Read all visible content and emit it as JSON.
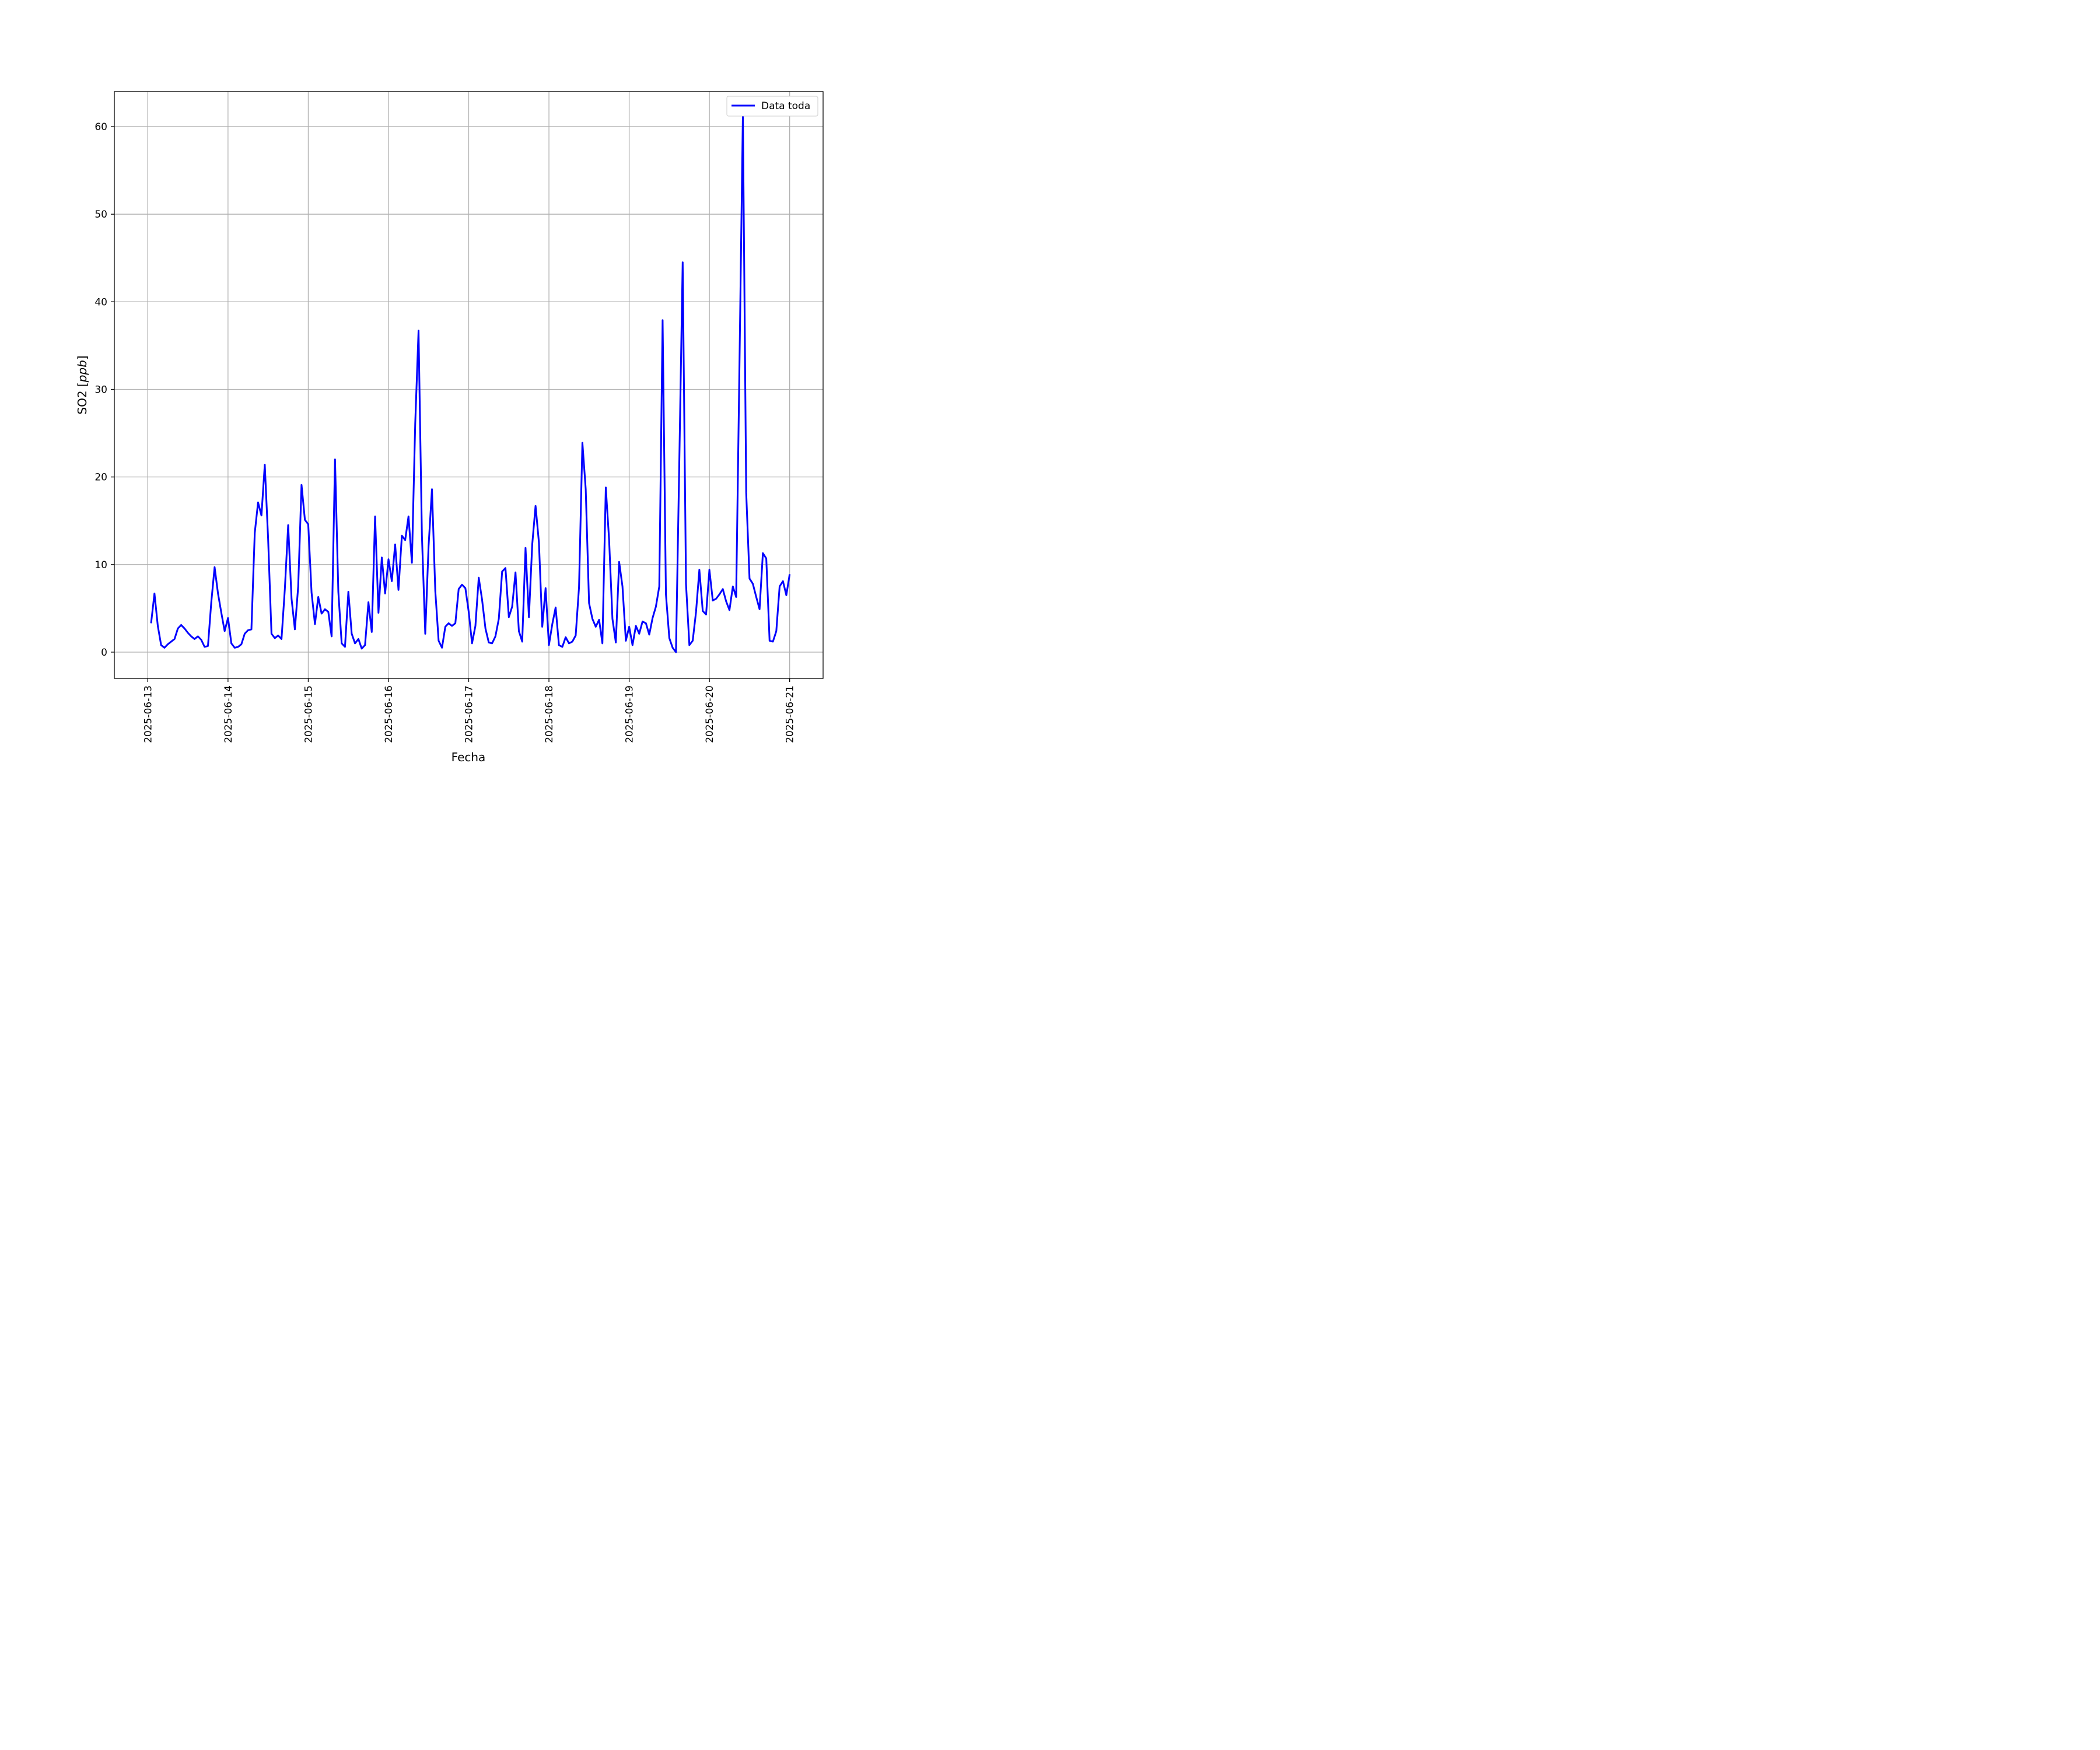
{
  "chart_data": {
    "type": "line",
    "xlabel": "Fecha",
    "ylabel": "SO2 [ppb]",
    "ylabel_main": "SO2 [",
    "ylabel_unit": "ppb",
    "ylabel_close": "]",
    "grid": true,
    "legend_position": "top-right",
    "xlim": [
      "2025-06-12T14:00",
      "2025-06-21T10:00"
    ],
    "ylim": [
      -3,
      64
    ],
    "y_ticks": [
      0,
      10,
      20,
      30,
      40,
      50,
      60
    ],
    "x_ticks": [
      "2025-06-13",
      "2025-06-14",
      "2025-06-15",
      "2025-06-16",
      "2025-06-17",
      "2025-06-18",
      "2025-06-19",
      "2025-06-20",
      "2025-06-21"
    ],
    "series": [
      {
        "name": "Data toda",
        "color": "#0000ff",
        "x": [
          "2025-06-13T01:00",
          "2025-06-13T02:00",
          "2025-06-13T03:00",
          "2025-06-13T04:00",
          "2025-06-13T05:00",
          "2025-06-13T06:00",
          "2025-06-13T07:00",
          "2025-06-13T08:00",
          "2025-06-13T09:00",
          "2025-06-13T10:00",
          "2025-06-13T11:00",
          "2025-06-13T12:00",
          "2025-06-13T13:00",
          "2025-06-13T14:00",
          "2025-06-13T15:00",
          "2025-06-13T16:00",
          "2025-06-13T17:00",
          "2025-06-13T18:00",
          "2025-06-13T19:00",
          "2025-06-13T20:00",
          "2025-06-13T21:00",
          "2025-06-13T22:00",
          "2025-06-13T23:00",
          "2025-06-14T00:00",
          "2025-06-14T01:00",
          "2025-06-14T02:00",
          "2025-06-14T03:00",
          "2025-06-14T04:00",
          "2025-06-14T05:00",
          "2025-06-14T06:00",
          "2025-06-14T07:00",
          "2025-06-14T08:00",
          "2025-06-14T09:00",
          "2025-06-14T10:00",
          "2025-06-14T11:00",
          "2025-06-14T12:00",
          "2025-06-14T13:00",
          "2025-06-14T14:00",
          "2025-06-14T15:00",
          "2025-06-14T16:00",
          "2025-06-14T17:00",
          "2025-06-14T18:00",
          "2025-06-14T19:00",
          "2025-06-14T20:00",
          "2025-06-14T21:00",
          "2025-06-14T22:00",
          "2025-06-14T23:00",
          "2025-06-15T00:00",
          "2025-06-15T01:00",
          "2025-06-15T02:00",
          "2025-06-15T03:00",
          "2025-06-15T04:00",
          "2025-06-15T05:00",
          "2025-06-15T06:00",
          "2025-06-15T07:00",
          "2025-06-15T08:00",
          "2025-06-15T09:00",
          "2025-06-15T10:00",
          "2025-06-15T11:00",
          "2025-06-15T12:00",
          "2025-06-15T13:00",
          "2025-06-15T14:00",
          "2025-06-15T15:00",
          "2025-06-15T16:00",
          "2025-06-15T17:00",
          "2025-06-15T18:00",
          "2025-06-15T19:00",
          "2025-06-15T20:00",
          "2025-06-15T21:00",
          "2025-06-15T22:00",
          "2025-06-15T23:00",
          "2025-06-16T00:00",
          "2025-06-16T01:00",
          "2025-06-16T02:00",
          "2025-06-16T03:00",
          "2025-06-16T04:00",
          "2025-06-16T05:00",
          "2025-06-16T06:00",
          "2025-06-16T07:00",
          "2025-06-16T08:00",
          "2025-06-16T09:00",
          "2025-06-16T10:00",
          "2025-06-16T11:00",
          "2025-06-16T12:00",
          "2025-06-16T13:00",
          "2025-06-16T14:00",
          "2025-06-16T15:00",
          "2025-06-16T16:00",
          "2025-06-16T17:00",
          "2025-06-16T18:00",
          "2025-06-16T19:00",
          "2025-06-16T20:00",
          "2025-06-16T21:00",
          "2025-06-16T22:00",
          "2025-06-16T23:00",
          "2025-06-17T00:00",
          "2025-06-17T01:00",
          "2025-06-17T02:00",
          "2025-06-17T03:00",
          "2025-06-17T04:00",
          "2025-06-17T05:00",
          "2025-06-17T06:00",
          "2025-06-17T07:00",
          "2025-06-17T08:00",
          "2025-06-17T09:00",
          "2025-06-17T10:00",
          "2025-06-17T11:00",
          "2025-06-17T12:00",
          "2025-06-17T13:00",
          "2025-06-17T14:00",
          "2025-06-17T15:00",
          "2025-06-17T16:00",
          "2025-06-17T17:00",
          "2025-06-17T18:00",
          "2025-06-17T19:00",
          "2025-06-17T20:00",
          "2025-06-17T21:00",
          "2025-06-17T22:00",
          "2025-06-17T23:00",
          "2025-06-18T00:00",
          "2025-06-18T01:00",
          "2025-06-18T02:00",
          "2025-06-18T03:00",
          "2025-06-18T04:00",
          "2025-06-18T05:00",
          "2025-06-18T06:00",
          "2025-06-18T07:00",
          "2025-06-18T08:00",
          "2025-06-18T09:00",
          "2025-06-18T10:00",
          "2025-06-18T11:00",
          "2025-06-18T12:00",
          "2025-06-18T13:00",
          "2025-06-18T14:00",
          "2025-06-18T15:00",
          "2025-06-18T16:00",
          "2025-06-18T17:00",
          "2025-06-18T18:00",
          "2025-06-18T19:00",
          "2025-06-18T20:00",
          "2025-06-18T21:00",
          "2025-06-18T22:00",
          "2025-06-18T23:00",
          "2025-06-19T00:00",
          "2025-06-19T01:00",
          "2025-06-19T02:00",
          "2025-06-19T03:00",
          "2025-06-19T04:00",
          "2025-06-19T05:00",
          "2025-06-19T06:00",
          "2025-06-19T07:00",
          "2025-06-19T08:00",
          "2025-06-19T09:00",
          "2025-06-19T10:00",
          "2025-06-19T11:00",
          "2025-06-19T12:00",
          "2025-06-19T13:00",
          "2025-06-19T14:00",
          "2025-06-19T15:00",
          "2025-06-19T16:00",
          "2025-06-19T17:00",
          "2025-06-19T18:00",
          "2025-06-19T19:00",
          "2025-06-19T20:00",
          "2025-06-19T21:00",
          "2025-06-19T22:00",
          "2025-06-19T23:00",
          "2025-06-20T00:00",
          "2025-06-20T01:00",
          "2025-06-20T02:00",
          "2025-06-20T03:00",
          "2025-06-20T04:00",
          "2025-06-20T05:00",
          "2025-06-20T06:00",
          "2025-06-20T07:00",
          "2025-06-20T08:00",
          "2025-06-20T09:00",
          "2025-06-20T10:00",
          "2025-06-20T11:00",
          "2025-06-20T12:00",
          "2025-06-20T13:00",
          "2025-06-20T14:00",
          "2025-06-20T15:00",
          "2025-06-20T16:00",
          "2025-06-20T17:00",
          "2025-06-20T18:00",
          "2025-06-20T19:00",
          "2025-06-20T20:00",
          "2025-06-20T21:00",
          "2025-06-20T22:00",
          "2025-06-20T23:00",
          "2025-06-21T00:00"
        ],
        "y": [
          3.3,
          6.7,
          3.0,
          0.8,
          0.5,
          0.9,
          1.2,
          1.5,
          2.7,
          3.1,
          2.7,
          2.2,
          1.8,
          1.5,
          1.8,
          1.4,
          0.6,
          0.7,
          5.7,
          9.7,
          6.7,
          4.5,
          2.4,
          3.9,
          1.0,
          0.5,
          0.6,
          0.9,
          2.1,
          2.5,
          2.6,
          13.6,
          17.1,
          15.6,
          21.4,
          13.0,
          2.1,
          1.6,
          1.9,
          1.5,
          7.2,
          14.5,
          6.1,
          2.6,
          7.5,
          19.1,
          15.1,
          14.6,
          6.8,
          3.2,
          6.3,
          4.4,
          4.9,
          4.6,
          1.8,
          22.0,
          6.9,
          1.0,
          0.6,
          6.9,
          2.1,
          1.0,
          1.5,
          0.4,
          0.8,
          5.7,
          2.3,
          15.5,
          4.5,
          10.8,
          6.7,
          10.6,
          8.1,
          12.3,
          7.1,
          13.3,
          12.8,
          15.5,
          10.2,
          26.1,
          36.7,
          13.3,
          2.1,
          12.1,
          18.6,
          7.0,
          1.3,
          0.5,
          2.9,
          3.3,
          3.0,
          3.3,
          7.2,
          7.7,
          7.3,
          4.6,
          1.0,
          3.0,
          8.5,
          6.0,
          2.7,
          1.1,
          1.0,
          1.8,
          3.8,
          9.2,
          9.6,
          4.0,
          5.2,
          9.1,
          2.4,
          1.2,
          11.9,
          4.0,
          12.3,
          16.7,
          12.5,
          2.9,
          7.3,
          0.8,
          3.2,
          5.1,
          0.8,
          0.6,
          1.7,
          1.0,
          1.2,
          1.9,
          7.4,
          23.9,
          18.6,
          5.6,
          3.8,
          2.9,
          3.7,
          1.0,
          18.8,
          12.8,
          3.8,
          1.1,
          10.3,
          7.5,
          1.3,
          2.9,
          0.8,
          3.0,
          2.1,
          3.5,
          3.3,
          2.0,
          3.9,
          5.2,
          7.5,
          37.9,
          6.6,
          1.6,
          0.5,
          0.0,
          22.0,
          44.5,
          7.8,
          0.8,
          1.3,
          4.6,
          9.4,
          4.7,
          4.3,
          9.4,
          5.9,
          6.1,
          6.6,
          7.2,
          5.8,
          4.8,
          7.5,
          6.3,
          33.0,
          61.3,
          18.2,
          8.4,
          7.8,
          6.3,
          4.9,
          11.3,
          10.7,
          1.3,
          1.2,
          2.4,
          7.5,
          8.1,
          6.5,
          8.9
        ]
      }
    ]
  }
}
